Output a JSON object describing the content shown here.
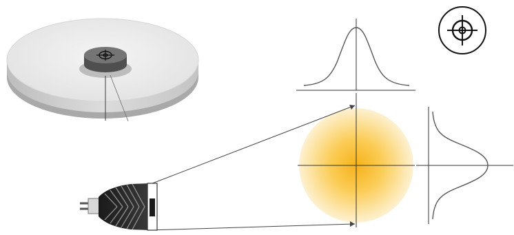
{
  "title": "",
  "icons": {
    "badge": "target-crosshair-icon",
    "disc_center": "target-crosshair-icon",
    "lamp": "mr16-led-lamp-icon"
  },
  "colors": {
    "glow_center": "#f6b21a",
    "glow_mid": "#fcd56a",
    "glow_edge": "#fdf1d2",
    "line": "#444444",
    "curve": "#555555",
    "disc_top": "#ececec",
    "disc_side": "#cfcfcf",
    "hub": "#6a6a6a"
  },
  "profiles": {
    "top_curve": "gaussian",
    "right_curve": "gaussian"
  }
}
